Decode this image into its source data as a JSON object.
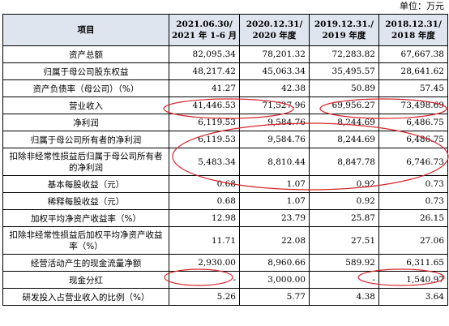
{
  "unit_label": "单位：万元",
  "header": {
    "item": "项目",
    "periods": [
      {
        "line1": "2021.06.30/",
        "line2": "2021 年 1-6 月"
      },
      {
        "line1": "2020.12.31/",
        "line2": "2020 年度"
      },
      {
        "line1": "2019.12.31./",
        "line2": "2019 年度"
      },
      {
        "line1": "2018.12.31/",
        "line2": "2018 年度"
      }
    ]
  },
  "rows": [
    {
      "item": "资产总额",
      "values": [
        "82,095.34",
        "78,201.32",
        "72,283.82",
        "67,667.38"
      ]
    },
    {
      "item": "归属于母公司股东权益",
      "values": [
        "48,217.42",
        "45,063.34",
        "35,495.57",
        "28,641.62"
      ]
    },
    {
      "item": "资产负债率（母公司）（%）",
      "values": [
        "41.27",
        "42.38",
        "50.89",
        "57.45"
      ]
    },
    {
      "item": "营业收入",
      "values": [
        "41,446.53",
        "71,527.96",
        "69,956.27",
        "73,498.69"
      ]
    },
    {
      "item": "净利润",
      "values": [
        "6,119.53",
        "9,584.76",
        "8,244.69",
        "6,486.75"
      ]
    },
    {
      "item": "归属于母公司所有者的净利润",
      "values": [
        "6,119.53",
        "9,584.76",
        "8,244.69",
        "6,486.75"
      ]
    },
    {
      "item": "扣除非经常性损益后归属于母公司所有者的净利润",
      "values": [
        "5,483.34",
        "8,810.44",
        "8,847.78",
        "6,746.73"
      ]
    },
    {
      "item": "基本每股收益（元）",
      "values": [
        "0.68",
        "1.07",
        "0.92",
        "0.73"
      ]
    },
    {
      "item": "稀释每股收益（元）",
      "values": [
        "0.68",
        "1.07",
        "0.92",
        "0.73"
      ]
    },
    {
      "item": "加权平均净资产收益率（%）",
      "values": [
        "12.98",
        "23.79",
        "25.87",
        "26.15"
      ]
    },
    {
      "item": "扣除非经常性损益后加权平均净资产收益率（%）",
      "values": [
        "11.71",
        "22.08",
        "27.51",
        "27.06"
      ]
    },
    {
      "item": "经营活动产生的现金流量净额",
      "values": [
        "2,930.00",
        "8,960.66",
        "589.92",
        "6,311.65"
      ]
    },
    {
      "item": "现金分红",
      "values": [
        "-",
        "3,000.00",
        "-",
        "1,540.97"
      ]
    },
    {
      "item": "研发投入占营业收入的比例（%）",
      "values": [
        "5.26",
        "5.77",
        "4.38",
        "3.64"
      ]
    }
  ],
  "annotation_color": "#d6262c"
}
